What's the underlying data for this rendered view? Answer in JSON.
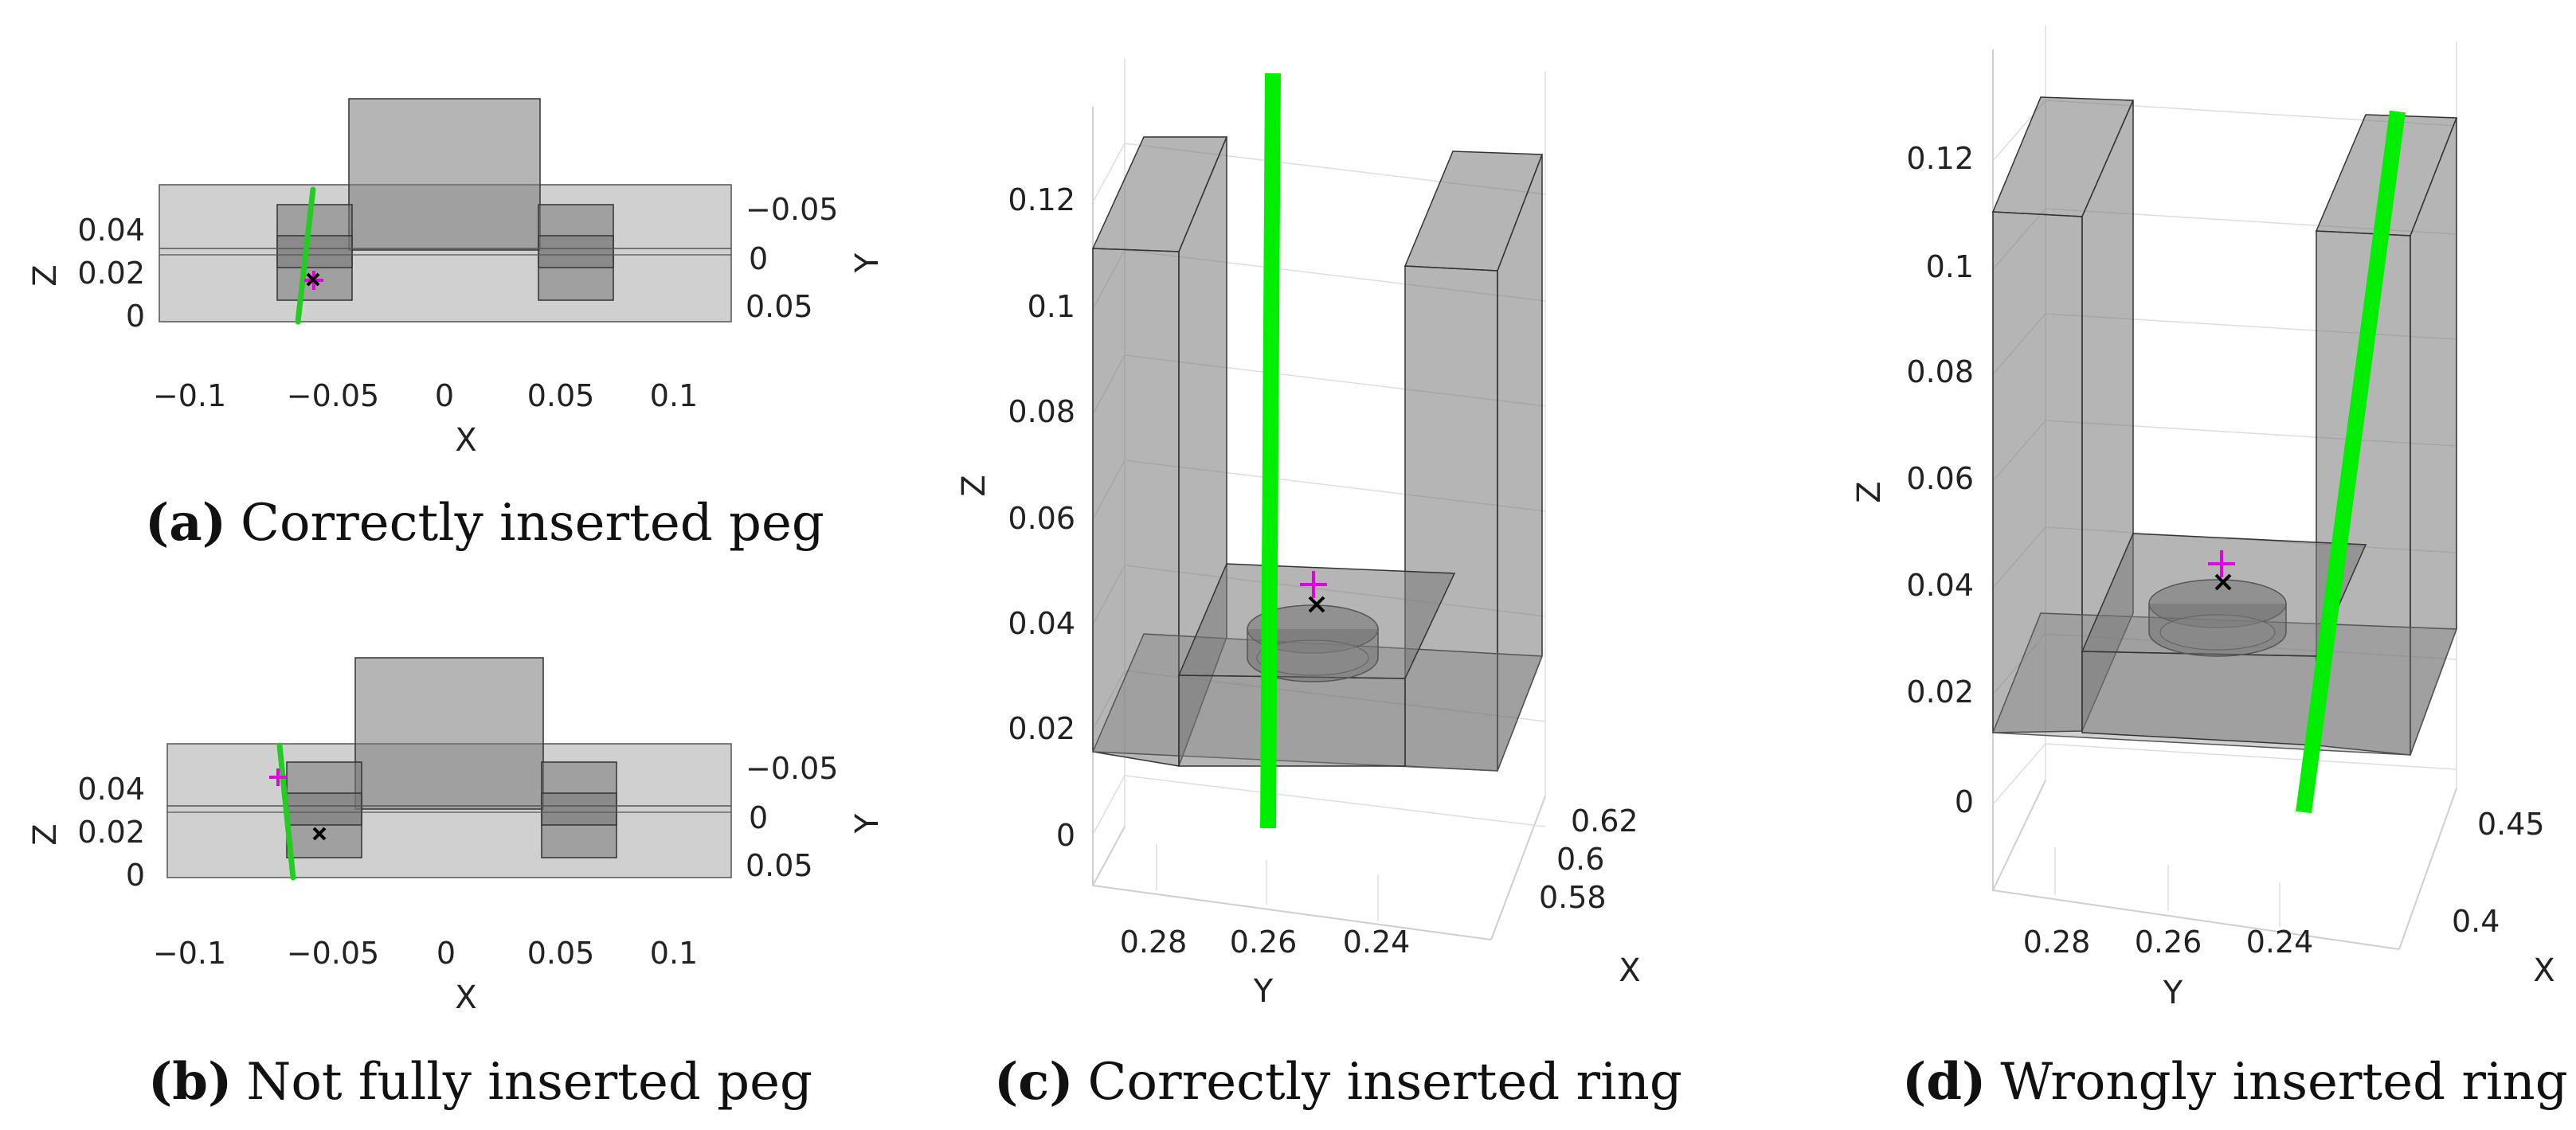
{
  "panels": {
    "a": {
      "letter": "(a)",
      "caption": "Correctly inserted peg",
      "x_label": "X",
      "z_label": "Z",
      "y_label": "Y",
      "x_ticks": [
        "−0.1",
        "−0.05",
        "0",
        "0.05",
        "0.1"
      ],
      "z_ticks": [
        "0.04",
        "0.02",
        "0"
      ],
      "y_ticks": [
        "−0.05",
        "0",
        "0.05"
      ]
    },
    "b": {
      "letter": "(b)",
      "caption": "Not fully inserted peg",
      "x_label": "X",
      "z_label": "Z",
      "y_label": "Y",
      "x_ticks": [
        "−0.1",
        "−0.05",
        "0",
        "0.05",
        "0.1"
      ],
      "z_ticks": [
        "0.04",
        "0.02",
        "0"
      ],
      "y_ticks": [
        "−0.05",
        "0",
        "0.05"
      ]
    },
    "c": {
      "letter": "(c)",
      "caption": "Correctly inserted ring",
      "z_label": "Z",
      "y_label": "Y",
      "x_label": "X",
      "z_ticks": [
        "0.12",
        "0.1",
        "0.08",
        "0.06",
        "0.04",
        "0.02",
        "0"
      ],
      "y_ticks": [
        "0.28",
        "0.26",
        "0.24"
      ],
      "x_ticks": [
        "0.62",
        "0.6",
        "0.58"
      ]
    },
    "d": {
      "letter": "(d)",
      "caption": "Wrongly inserted ring",
      "z_label": "Z",
      "y_label": "Y",
      "x_label": "X",
      "z_ticks": [
        "0.12",
        "0.1",
        "0.08",
        "0.06",
        "0.04",
        "0.02",
        "0"
      ],
      "y_ticks": [
        "0.28",
        "0.26",
        "0.24"
      ],
      "x_ticks": [
        "0.45",
        "0.4"
      ]
    }
  },
  "colors": {
    "rod": "#00ee00",
    "target_marker": "#e000e0",
    "actual_marker": "#000000",
    "block": "#888888"
  },
  "markers": {
    "target": "plus-marker",
    "actual": "x-marker"
  }
}
